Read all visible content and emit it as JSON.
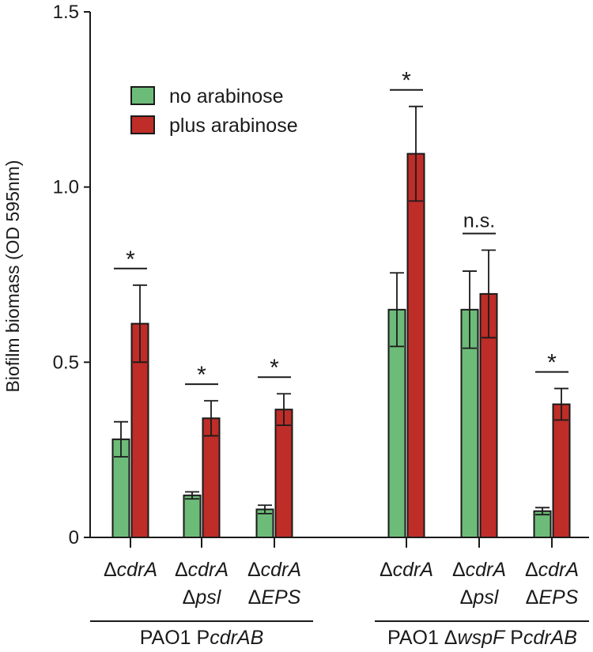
{
  "chart_data": {
    "type": "bar",
    "ylabel": "Biofilm biomass (OD 595nm)",
    "ylim": [
      0,
      1.5
    ],
    "yticks": [
      {
        "value": 0,
        "label": "0"
      },
      {
        "value": 0.5,
        "label": "0.5"
      },
      {
        "value": 1.0,
        "label": "1.0"
      },
      {
        "value": 1.5,
        "label": "1.5"
      }
    ],
    "legend": [
      {
        "name": "no arabinose",
        "color": "#6dbb78"
      },
      {
        "name": "plus arabinose",
        "color": "#be2d28"
      }
    ],
    "groups": [
      {
        "prefix": "PAO1 P",
        "italic": "cdrAB",
        "middle": "",
        "suffix_prefix": "",
        "suffix_italic": "",
        "categories": [
          {
            "line1": "ΔcdrA",
            "line2": "",
            "no": 0.28,
            "no_err": 0.05,
            "plus": 0.61,
            "plus_err": 0.11,
            "sig": "*"
          },
          {
            "line1": "ΔcdrA",
            "line2": "Δpsl",
            "no": 0.12,
            "no_err": 0.01,
            "plus": 0.34,
            "plus_err": 0.05,
            "sig": "*"
          },
          {
            "line1": "ΔcdrA",
            "line2": "ΔEPS",
            "no": 0.08,
            "no_err": 0.012,
            "plus": 0.365,
            "plus_err": 0.045,
            "sig": "*"
          }
        ]
      },
      {
        "prefix": "PAO1 Δ",
        "italic": "wspF",
        "middle": " P",
        "suffix_italic": "cdrAB",
        "categories": [
          {
            "line1": "ΔcdrA",
            "line2": "",
            "no": 0.65,
            "no_err": 0.105,
            "plus": 1.095,
            "plus_err": 0.135,
            "sig": "*"
          },
          {
            "line1": "ΔcdrA",
            "line2": "Δpsl",
            "no": 0.65,
            "no_err": 0.11,
            "plus": 0.695,
            "plus_err": 0.125,
            "sig": "n.s."
          },
          {
            "line1": "ΔcdrA",
            "line2": "ΔEPS",
            "no": 0.075,
            "no_err": 0.01,
            "plus": 0.38,
            "plus_err": 0.045,
            "sig": "*"
          }
        ]
      }
    ]
  }
}
